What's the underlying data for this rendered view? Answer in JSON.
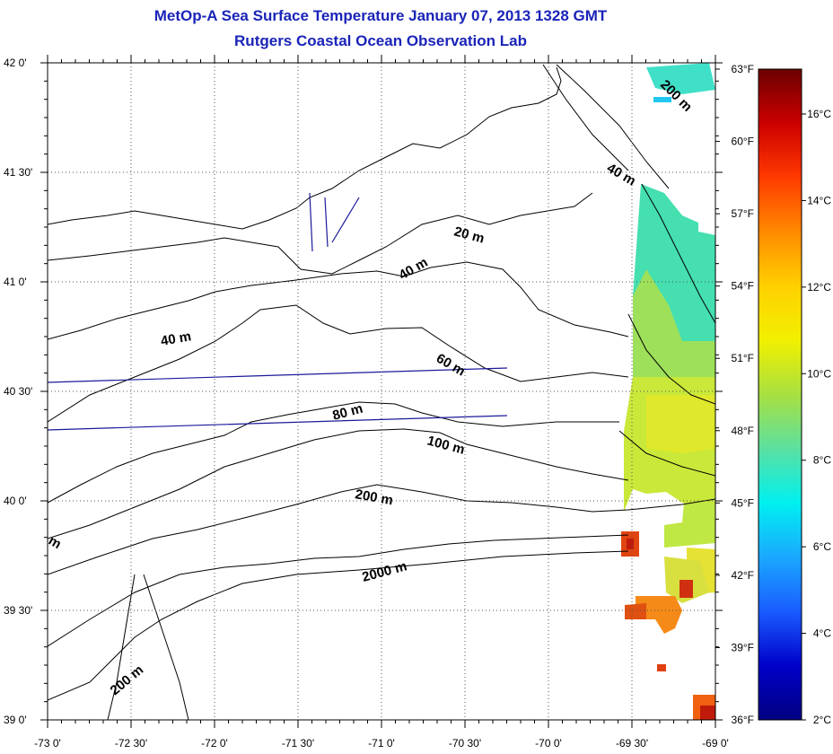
{
  "title": "MetOp-A Sea Surface Temperature January 07, 2013 1328 GMT",
  "subtitle": "Rutgers Coastal Ocean Observation Lab",
  "map": {
    "lon_range": [
      -73,
      -69
    ],
    "lat_range": [
      39,
      42
    ],
    "lon_ticks": [
      "-73 0'",
      "-72 30'",
      "-72 0'",
      "-71 30'",
      "-71 0'",
      "-70 30'",
      "-70 0'",
      "-69 30'",
      "-69 0'"
    ],
    "lat_ticks": [
      "39 0'",
      "39 30'",
      "40 0'",
      "40 30'",
      "41 0'",
      "41 30'",
      "42 0'"
    ],
    "grid": true
  },
  "contour_labels": [
    "200 m",
    "40 m",
    "20 m",
    "40 m",
    "40 m",
    "60 m",
    "80 m",
    "100 m",
    "200 m",
    "2000 m",
    "200 m",
    "m"
  ],
  "colorbar": {
    "fahrenheit": [
      "63°F",
      "60°F",
      "57°F",
      "54°F",
      "51°F",
      "48°F",
      "45°F",
      "42°F",
      "39°F",
      "36°F"
    ],
    "celsius": [
      "16°C",
      "14°C",
      "12°C",
      "10°C",
      "8°C",
      "6°C",
      "4°C",
      "2°C"
    ],
    "colors": [
      "#6b0000",
      "#cc0000",
      "#ff3a00",
      "#ff8a00",
      "#ffd000",
      "#f2f000",
      "#a8e040",
      "#5ce0a0",
      "#00f0f0",
      "#1aa8ff",
      "#1a5cff",
      "#0000c8",
      "#000080"
    ]
  }
}
